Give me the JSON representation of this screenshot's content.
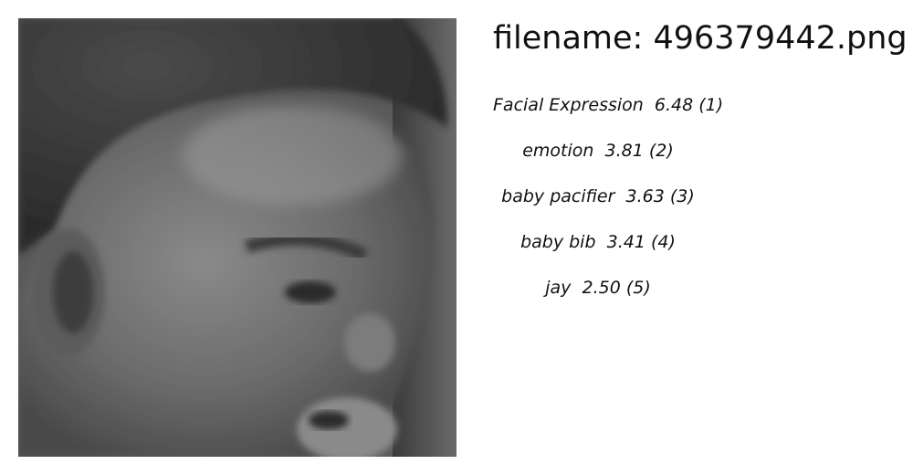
{
  "header": {
    "filename_label": "filename: 496379442.png"
  },
  "image": {
    "icon": "baby-face-photo",
    "description_colors": {
      "background": "#6f6f6f",
      "skin_dark": "#3b3b3b",
      "skin_mid": "#6a6a6a",
      "skin_light": "#9a9a9a"
    }
  },
  "predictions": [
    {
      "label": "Facial Expression",
      "score": "6.48",
      "rank": "(1)"
    },
    {
      "label": "emotion",
      "score": "3.81",
      "rank": "(2)"
    },
    {
      "label": "baby pacifier",
      "score": "3.63",
      "rank": "(3)"
    },
    {
      "label": "baby bib",
      "score": "3.41",
      "rank": "(4)"
    },
    {
      "label": "jay",
      "score": "2.50",
      "rank": "(5)"
    }
  ]
}
